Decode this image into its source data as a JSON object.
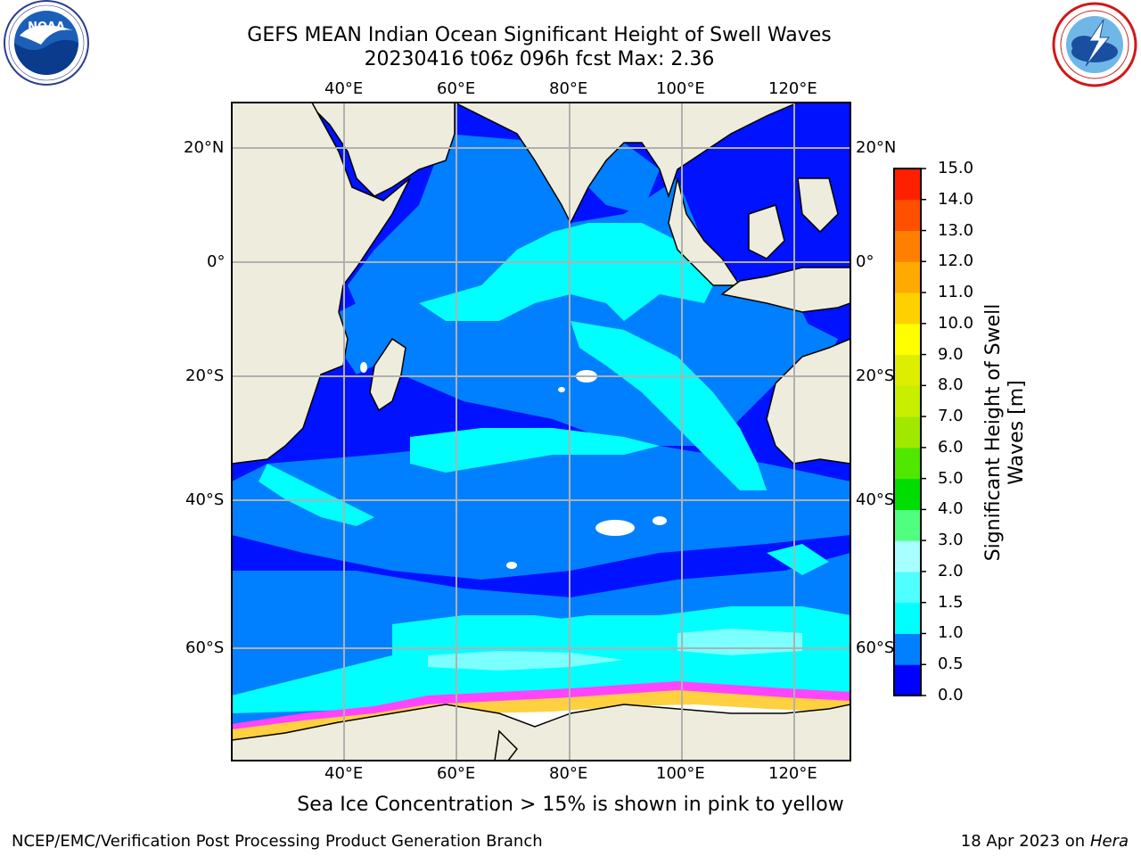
{
  "header": {
    "title_line1": "GEFS MEAN Indian Ocean Significant Height of Swell Waves",
    "title_line2": "20230416 t06z 096h fcst   Max: 2.36"
  },
  "map": {
    "lon_ticks": [
      "40°E",
      "60°E",
      "80°E",
      "100°E",
      "120°E"
    ],
    "lat_ticks": [
      "20°N",
      "0°",
      "20°S",
      "40°S",
      "60°S"
    ],
    "lon_range": [
      20,
      130
    ],
    "lat_range": [
      -72,
      28
    ],
    "grid": true,
    "ocean_color": "#0012ff",
    "land_color": "#eeecdc"
  },
  "colorbar": {
    "label": "Significant Height of Swell Waves [m]",
    "ticks": [
      "0.0",
      "0.5",
      "1.0",
      "1.5",
      "2.0",
      "3.0",
      "4.0",
      "5.0",
      "6.0",
      "7.0",
      "8.0",
      "9.0",
      "10.0",
      "11.0",
      "12.0",
      "13.0",
      "14.0",
      "15.0"
    ],
    "colors": [
      "#0000ff",
      "#0080ff",
      "#00ffff",
      "#50ffff",
      "#a8ffff",
      "#50ff80",
      "#00dd00",
      "#50e800",
      "#a0e800",
      "#c8ee00",
      "#ddee00",
      "#ffff00",
      "#ffd000",
      "#ffaa00",
      "#ff8000",
      "#ff5000",
      "#ff2000"
    ]
  },
  "notes": {
    "ice": "Sea Ice Concentration > 15% is shown in pink to yellow"
  },
  "footer": {
    "left": "NCEP/EMC/Verification Post Processing Product Generation Branch",
    "right_date": "18 Apr 2023 on ",
    "right_host": "Hera"
  },
  "logos": {
    "noaa": "NOAA",
    "nws": "NATIONAL WEATHER SERVICE"
  }
}
